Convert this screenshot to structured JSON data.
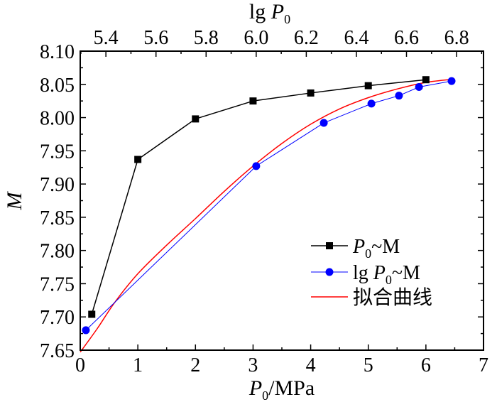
{
  "chart_data": {
    "type": "line",
    "title": "",
    "bottom_axis": {
      "label_var": "P",
      "label_sub": "0",
      "label_rest": "/MPa",
      "range": [
        0,
        7
      ],
      "ticks": [
        0,
        1,
        2,
        3,
        4,
        5,
        6,
        7
      ],
      "tick_labels": [
        "0",
        "1",
        "2",
        "3",
        "4",
        "5",
        "6",
        "7"
      ]
    },
    "top_axis": {
      "label_prefix": "lg ",
      "label_var": "P",
      "label_sub": "0",
      "range": [
        5.2975,
        6.9075
      ],
      "ticks": [
        5.4,
        5.6,
        5.8,
        6.0,
        6.2,
        6.4,
        6.6,
        6.8
      ],
      "tick_labels": [
        "5.4",
        "5.6",
        "5.8",
        "6.0",
        "6.2",
        "6.4",
        "6.6",
        "6.8"
      ]
    },
    "y_axis": {
      "label": "M",
      "range": [
        7.65,
        8.1
      ],
      "ticks": [
        7.65,
        7.7,
        7.75,
        7.8,
        7.85,
        7.9,
        7.95,
        8.0,
        8.05,
        8.1
      ],
      "tick_labels": [
        "7.65",
        "7.70",
        "7.75",
        "7.80",
        "7.85",
        "7.90",
        "7.95",
        "8.00",
        "8.05",
        "8.10"
      ]
    },
    "series": [
      {
        "name_var": "P",
        "name_sub": "0",
        "name_rest": "~M",
        "color": "#000000",
        "marker": "square",
        "x_axis": "bottom",
        "x": [
          0.2,
          1.0,
          2.0,
          3.0,
          4.0,
          5.0,
          6.0
        ],
        "y": [
          7.704,
          7.937,
          7.998,
          8.025,
          8.037,
          8.048,
          8.057
        ]
      },
      {
        "name_prefix": "lg ",
        "name_var": "P",
        "name_sub": "0",
        "name_rest": "~M",
        "color": "#0000ff",
        "marker": "circle",
        "x_axis": "top",
        "x": [
          5.32,
          6.0,
          6.27,
          6.46,
          6.57,
          6.65,
          6.78
        ],
        "y": [
          7.68,
          7.927,
          7.992,
          8.021,
          8.033,
          8.046,
          8.055
        ]
      },
      {
        "name": "拟合曲线",
        "color": "#ff0000",
        "marker": "none",
        "x_axis": "bottom",
        "x": [
          0.0,
          0.3,
          0.6,
          1.0,
          1.5,
          2.0,
          2.5,
          3.0,
          3.5,
          4.0,
          4.5,
          5.0,
          5.5,
          6.0,
          6.5
        ],
        "y": [
          7.647,
          7.683,
          7.722,
          7.765,
          7.808,
          7.848,
          7.889,
          7.927,
          7.961,
          7.99,
          8.013,
          8.03,
          8.043,
          8.053,
          8.058
        ]
      }
    ],
    "legend_position": "lower-right"
  }
}
